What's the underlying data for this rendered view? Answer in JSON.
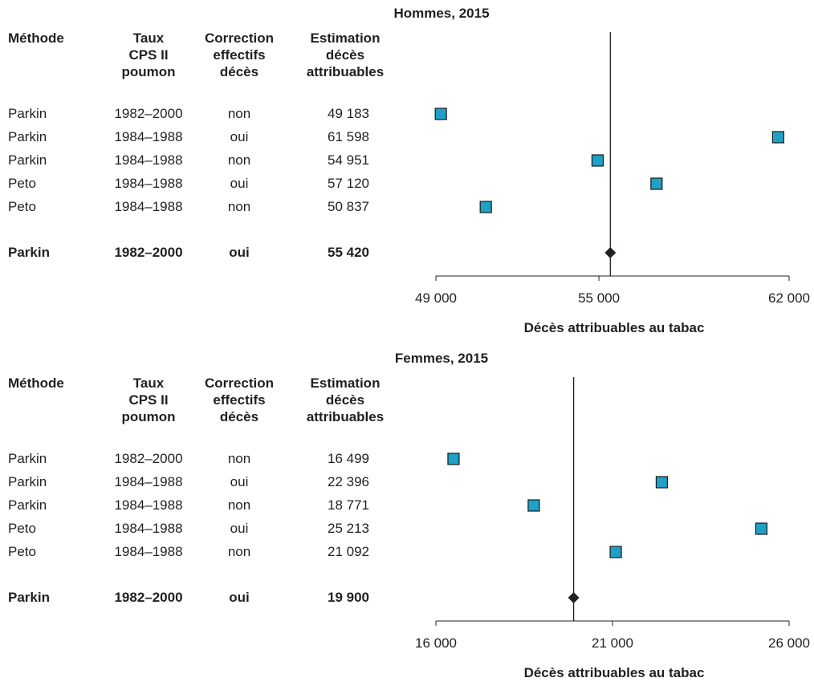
{
  "colors": {
    "marker": "#1fa0c6",
    "marker_stroke": "#1a1a1a",
    "pooled": "#231f20",
    "axis": "#231f20"
  },
  "headers": {
    "method": [
      "Méthode"
    ],
    "period": [
      "Taux",
      "CPS II",
      "poumon"
    ],
    "correction": [
      "Correction",
      "effectifs",
      "décès"
    ],
    "estimate": [
      "Estimation",
      "décès",
      "attribuables"
    ]
  },
  "chart_data": [
    {
      "type": "scatter",
      "title": "Hommes, 2015",
      "xlabel": "Décès attribuables au tabac",
      "xlim": [
        49000,
        62000
      ],
      "xticks": [
        49000,
        55000,
        62000
      ],
      "xtick_labels": [
        "49 000",
        "55 000",
        "62 000"
      ],
      "reference_line": 55420,
      "rows": [
        {
          "method": "Parkin",
          "period": "1982–2000",
          "correction": "non",
          "estimate_label": "49 183",
          "value": 49183
        },
        {
          "method": "Parkin",
          "period": "1984–1988",
          "correction": "oui",
          "estimate_label": "61 598",
          "value": 61598
        },
        {
          "method": "Parkin",
          "period": "1984–1988",
          "correction": "non",
          "estimate_label": "54 951",
          "value": 54951
        },
        {
          "method": "Peto",
          "period": "1984–1988",
          "correction": "oui",
          "estimate_label": "57 120",
          "value": 57120
        },
        {
          "method": "Peto",
          "period": "1984–1988",
          "correction": "non",
          "estimate_label": "50 837",
          "value": 50837
        }
      ],
      "pooled": {
        "method": "Parkin",
        "period": "1982–2000",
        "correction": "oui",
        "estimate_label": "55 420",
        "value": 55420
      }
    },
    {
      "type": "scatter",
      "title": "Femmes, 2015",
      "xlabel": "Décès attribuables au tabac",
      "xlim": [
        16000,
        26000
      ],
      "xticks": [
        16000,
        21000,
        26000
      ],
      "xtick_labels": [
        "16 000",
        "21 000",
        "26 000"
      ],
      "reference_line": 19900,
      "rows": [
        {
          "method": "Parkin",
          "period": "1982–2000",
          "correction": "non",
          "estimate_label": "16 499",
          "value": 16499
        },
        {
          "method": "Parkin",
          "period": "1984–1988",
          "correction": "oui",
          "estimate_label": "22 396",
          "value": 22396
        },
        {
          "method": "Parkin",
          "period": "1984–1988",
          "correction": "non",
          "estimate_label": "18 771",
          "value": 18771
        },
        {
          "method": "Peto",
          "period": "1984–1988",
          "correction": "oui",
          "estimate_label": "25 213",
          "value": 25213
        },
        {
          "method": "Peto",
          "period": "1984–1988",
          "correction": "non",
          "estimate_label": "21 092",
          "value": 21092
        }
      ],
      "pooled": {
        "method": "Parkin",
        "period": "1982–2000",
        "correction": "oui",
        "estimate_label": "19 900",
        "value": 19900
      }
    }
  ]
}
